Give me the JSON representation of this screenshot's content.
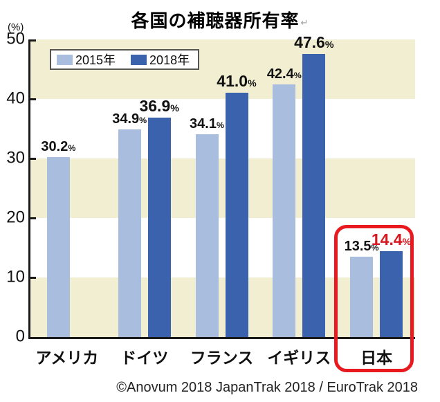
{
  "chart_data": {
    "type": "bar",
    "title": "各国の補聴器所有率",
    "title_return_mark": "↵",
    "unit_label": "(%)",
    "percent_suffix": "%",
    "categories": [
      "アメリカ",
      "ドイツ",
      "フランス",
      "イギリス",
      "日本"
    ],
    "series": [
      {
        "name": "2015年",
        "color": "#a9bedf",
        "values": [
          30.2,
          34.9,
          34.1,
          42.4,
          13.5
        ]
      },
      {
        "name": "2018年",
        "color": "#3b63ad",
        "values": [
          null,
          36.9,
          41.0,
          47.6,
          14.4
        ]
      }
    ],
    "ylim": [
      0,
      50
    ],
    "yticks": [
      50,
      40,
      30,
      20,
      10,
      0
    ],
    "grid": "none",
    "band_colors": {
      "stripe": "#f2eed1",
      "alt": "#ffffff"
    },
    "legend_position": "top-left",
    "highlight": {
      "category": "日本",
      "series": "2018年",
      "box_color": "#e8191f",
      "label_color": "#d7171f"
    }
  },
  "footer": {
    "credit": "©Anovum 2018 JapanTrak 2018 / EuroTrak 2018"
  }
}
